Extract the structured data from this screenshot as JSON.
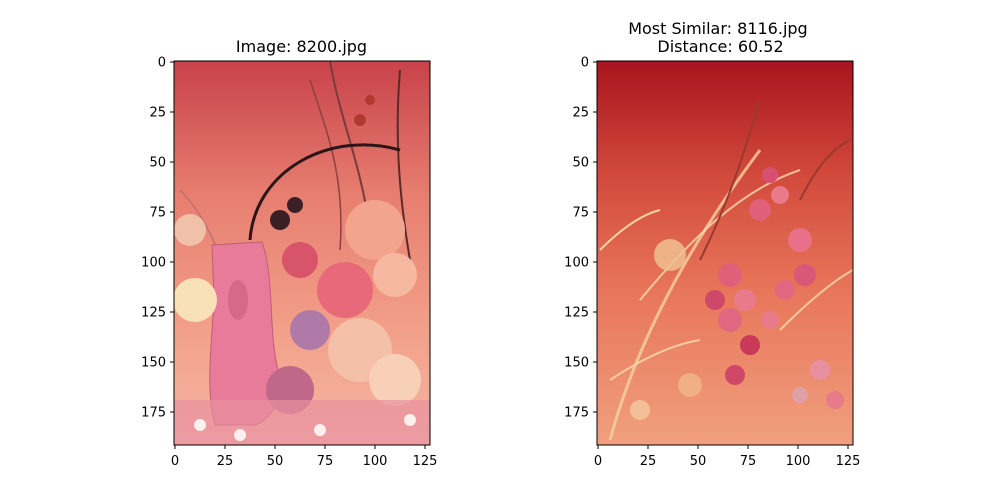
{
  "chart_data": [
    {
      "type": "image",
      "title": "Image: 8200.jpg",
      "image_width": 128,
      "image_height": 192,
      "xlim": [
        -0.5,
        127.5
      ],
      "ylim": [
        191.5,
        -0.5
      ],
      "xticks": [
        0,
        25,
        50,
        75,
        100,
        125
      ],
      "yticks": [
        0,
        25,
        50,
        75,
        100,
        125,
        150,
        175
      ],
      "xtick_labels": [
        "0",
        "25",
        "50",
        "75",
        "100",
        "125"
      ],
      "ytick_labels": [
        "0",
        "25",
        "50",
        "75",
        "100",
        "125",
        "150",
        "175"
      ],
      "content": "pink floral painting with a pink vase in the lower left, peonies and blossoms at right, dark red-to-salmon gradient background",
      "colors": {
        "top": "#c8424a",
        "middle": "#f0967e",
        "bottom": "#f5b6a2",
        "vase": "#e87a9a",
        "flower": "#f2a48c"
      }
    },
    {
      "type": "image",
      "title": "Most Similar: 8116.jpg\nDistance: 60.52",
      "title_lines": [
        "Most Similar: 8116.jpg",
        "Distance: 60.52"
      ],
      "image_width": 128,
      "image_height": 192,
      "xlim": [
        -0.5,
        127.5
      ],
      "ylim": [
        191.5,
        -0.5
      ],
      "xticks": [
        0,
        25,
        50,
        75,
        100,
        125
      ],
      "yticks": [
        0,
        25,
        50,
        75,
        100,
        125,
        150,
        175
      ],
      "xtick_labels": [
        "0",
        "25",
        "50",
        "75",
        "100",
        "125"
      ],
      "ytick_labels": [
        "0",
        "25",
        "50",
        "75",
        "100",
        "125",
        "150",
        "175"
      ],
      "content": "red-to-salmon background with pink roses, small flower clusters and wheat-like grasses",
      "colors": {
        "top": "#a8141e",
        "middle": "#e46a4e",
        "bottom": "#f0a07e",
        "rose": "#e0607a",
        "grass": "#f5d3a0"
      }
    }
  ]
}
